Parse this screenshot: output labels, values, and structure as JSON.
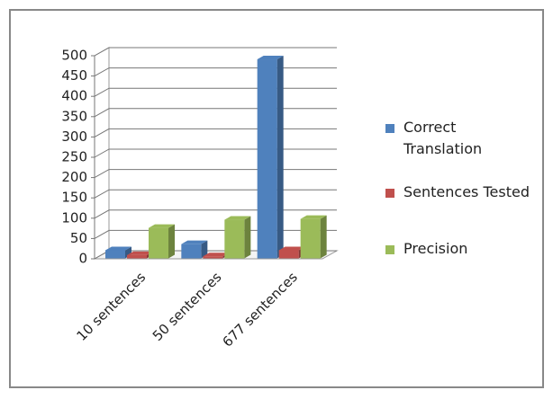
{
  "chart_data": {
    "type": "bar",
    "categories": [
      "10 sentences",
      "50 sentences",
      "677 sentences"
    ],
    "series": [
      {
        "name": "Correct Translation",
        "color": "#4f81bd",
        "values": [
          20,
          35,
          490
        ]
      },
      {
        "name": "Sentences Tested",
        "color": "#c0504d",
        "values": [
          8,
          5,
          20
        ]
      },
      {
        "name": "Precision",
        "color": "#9bbb59",
        "values": [
          75,
          95,
          97
        ]
      }
    ],
    "ylim": [
      0,
      500
    ],
    "yticks": [
      0,
      50,
      100,
      150,
      200,
      250,
      300,
      350,
      400,
      450,
      500
    ],
    "grid": true
  }
}
